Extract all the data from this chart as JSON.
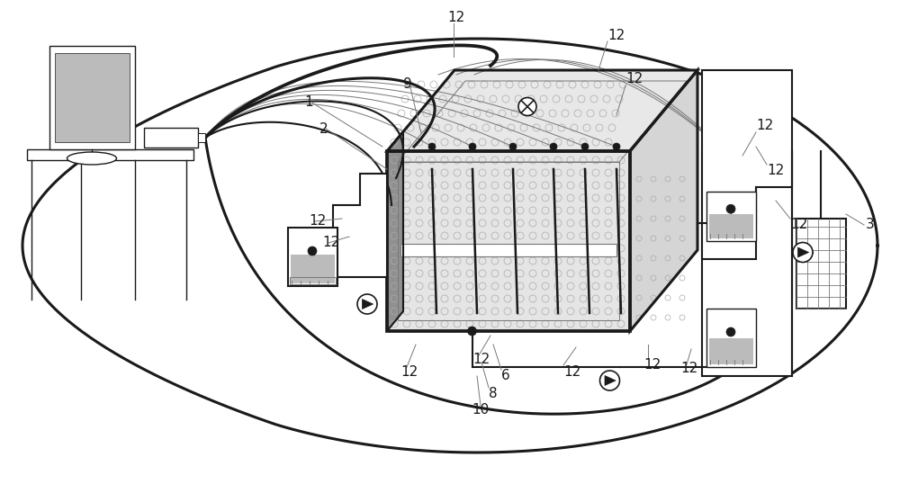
{
  "bg_color": "#ffffff",
  "line_color": "#1a1a1a",
  "gray_color": "#777777",
  "light_gray": "#bbbbbb",
  "sand_color": "#e0e0e0",
  "dark_gray": "#555555",
  "figsize": [
    10.0,
    5.48
  ],
  "dpi": 100,
  "fig_w": 1000,
  "fig_h": 548,
  "label_fs": 11,
  "label_fs_sm": 10
}
